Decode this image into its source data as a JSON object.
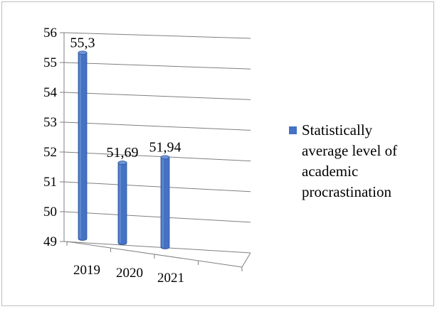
{
  "chart_data": {
    "type": "bar",
    "categories": [
      "2019",
      "2020",
      "2021"
    ],
    "series": [
      {
        "name": "Statistically average level of academic procrastination",
        "values": [
          55.3,
          51.69,
          51.94
        ],
        "labels": [
          "55,3",
          "51,69",
          "51,94"
        ]
      }
    ],
    "yticks": [
      "49",
      "50",
      "51",
      "52",
      "53",
      "54",
      "55",
      "56"
    ],
    "ylim": [
      49,
      56
    ],
    "grid": true,
    "legend_position": "right",
    "colors": {
      "bar": "#4472c4",
      "bar_dark": "#2e5597",
      "bar_light": "#6f96d8"
    }
  },
  "legend": {
    "lines": [
      "Statistically",
      "average level of",
      "academic",
      "procrastination"
    ]
  }
}
